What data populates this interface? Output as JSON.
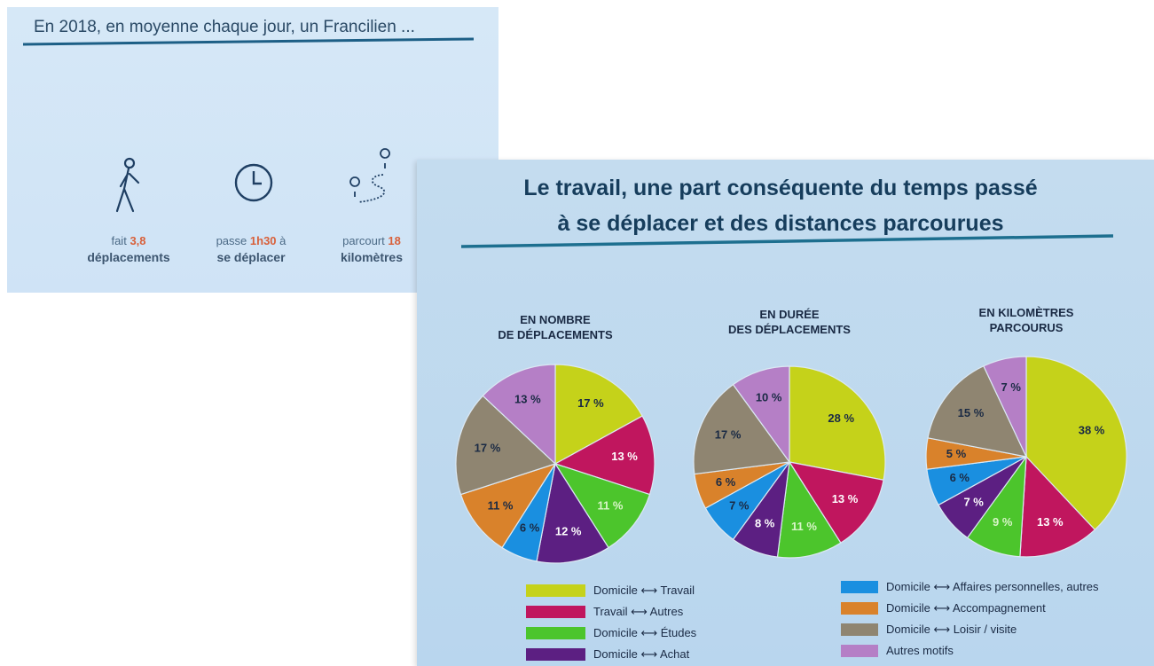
{
  "slide_1": {
    "title": "En  2018, en moyenne chaque jour, un Francilien ...",
    "stats": [
      {
        "verb": "fait",
        "number": "3,8",
        "rest": "déplacements"
      },
      {
        "verb": "passe",
        "number": "1h30",
        "suffix": "à",
        "rest": "se déplacer"
      },
      {
        "verb": "parcourt",
        "number": "18",
        "rest": "kilomètres"
      }
    ]
  },
  "chart_data": {
    "type": "pie",
    "title": "Le travail, une part conséquente du temps passé\nà se déplacer et des distances parcourues",
    "categories": [
      "Domicile ⟷ Travail",
      "Travail ⟷ Autres",
      "Domicile ⟷ Études",
      "Domicile ⟷ Achat",
      "Domicile ⟷ Affaires personnelles, autres",
      "Domicile ⟷ Accompagnement",
      "Domicile ⟷ Loisir / visite",
      "Autres motifs"
    ],
    "colors": [
      "#c5d21a",
      "#c0165e",
      "#4cc52c",
      "#5c1f82",
      "#1a8fe0",
      "#d9822b",
      "#8f8571",
      "#b57fc6"
    ],
    "series": [
      {
        "name": "EN NOMBRE\nDE DÉPLACEMENTS",
        "values": [
          17,
          13,
          11,
          12,
          6,
          11,
          17,
          13
        ],
        "value_labels": [
          "17 %",
          "13 %",
          "11 %",
          "12 %",
          "6 %",
          "11 %",
          "17 %",
          "13 %"
        ]
      },
      {
        "name": "EN DURÉE\nDES DÉPLACEMENTS",
        "values": [
          28,
          13,
          11,
          8,
          7,
          6,
          17,
          10
        ],
        "value_labels": [
          "28 %",
          "13 %",
          "11 %",
          "8 %",
          "7 %",
          "6 %",
          "17 %",
          "10 %"
        ]
      },
      {
        "name": "EN KILOMÈTRES\nPARCOURUS",
        "values": [
          38,
          13,
          9,
          7,
          6,
          5,
          15,
          7
        ],
        "value_labels": [
          "38 %",
          "13 %",
          "9 %",
          "7 %",
          "6 %",
          "5 %",
          "15 %",
          "7 %"
        ]
      }
    ]
  }
}
